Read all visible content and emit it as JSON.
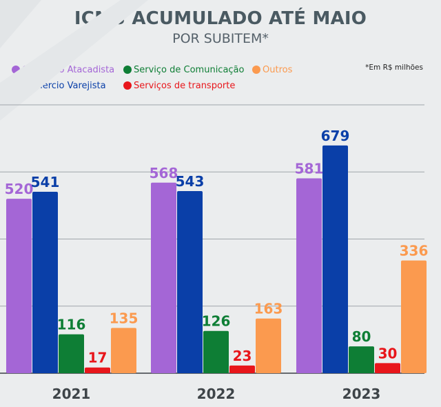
{
  "title": "ICMS ACUMULADO ATÉ MAIO",
  "subtitle": "POR SUBITEM*",
  "note": "*Em R$ milhões",
  "chart_data": {
    "type": "bar",
    "categories": [
      "2021",
      "2022",
      "2023"
    ],
    "series": [
      {
        "name": "Comércio Atacadista",
        "color": "#a466d6",
        "values": [
          520,
          568,
          581
        ]
      },
      {
        "name": "Comércio Varejista",
        "color": "#0a3fa8",
        "values": [
          541,
          543,
          679
        ]
      },
      {
        "name": "Serviço de Comunicação",
        "color": "#0e7e35",
        "values": [
          116,
          126,
          80
        ]
      },
      {
        "name": "Serviços de transporte",
        "color": "#e8161b",
        "values": [
          17,
          23,
          30
        ]
      },
      {
        "name": "Outros",
        "color": "#fb9a4f",
        "values": [
          135,
          163,
          336
        ]
      }
    ],
    "ylim": [
      0,
      800
    ],
    "grid": true,
    "legend_position": "top-left",
    "data_labels": true
  }
}
